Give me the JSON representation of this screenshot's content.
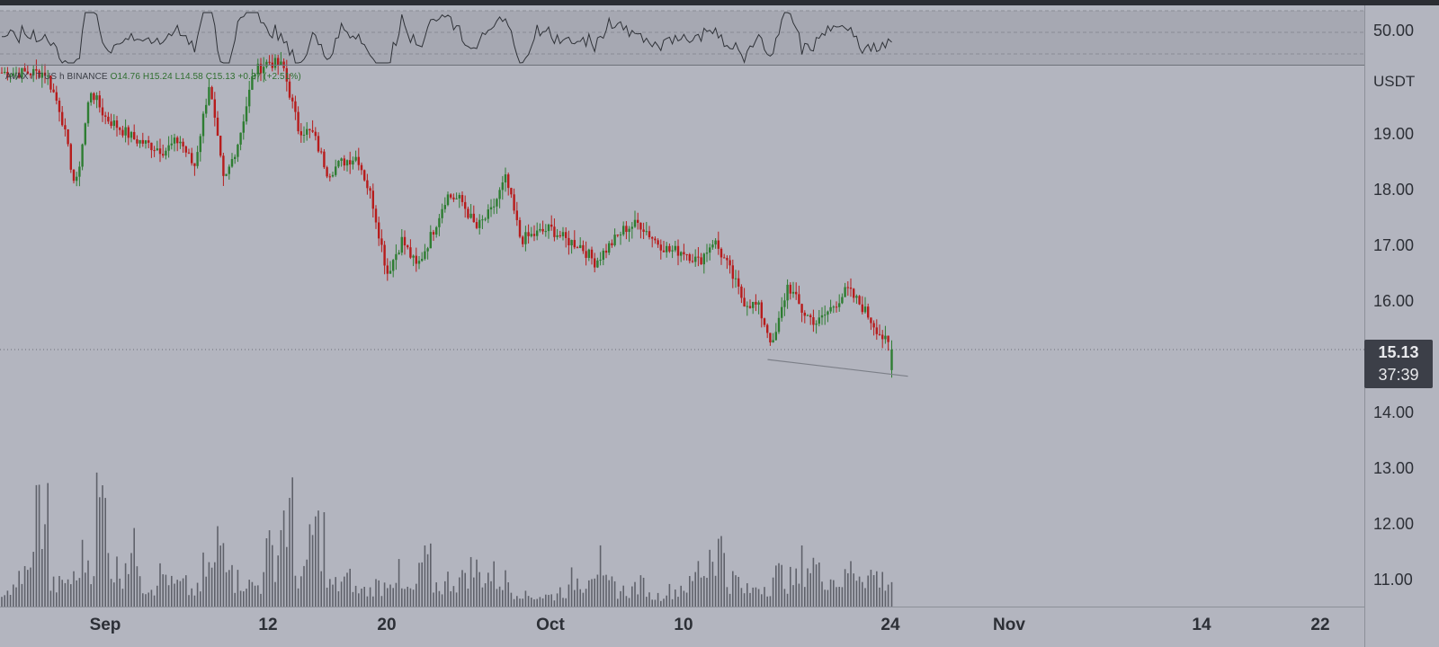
{
  "ticker": {
    "symbol": "AVAX",
    "pair_fragment": "/ T",
    "quote_fragment": "US",
    "interval_fragment": "h",
    "exchange": "BINANCE",
    "open": "O14.76",
    "high": "H15.24",
    "low": "L14.58",
    "close": "C15.13",
    "change": "+0.37 (+2.51%)"
  },
  "price_axis": {
    "currency": "USDT",
    "rsi_level": "50.00",
    "ticks": [
      "19.00",
      "18.00",
      "17.00",
      "16.00",
      "14.00",
      "13.00",
      "12.00",
      "11.00"
    ]
  },
  "last_price_tag": {
    "price": "15.13",
    "countdown": "37:39"
  },
  "time_axis": {
    "labels": [
      "Sep",
      "12",
      "20",
      "Oct",
      "10",
      "24",
      "Nov",
      "14",
      "22"
    ]
  },
  "colors": {
    "background": "#b3b5bf",
    "up_candle": "#2e7d32",
    "down_candle": "#b71c1c",
    "volume": "#5f616a",
    "rsi_line": "#2f3238",
    "trendline": "#7c7f88"
  },
  "chart_data": {
    "type": "candlestick",
    "title": "",
    "symbol": "AVAX/USDT",
    "exchange": "BINANCE",
    "ylabel": "USDT",
    "ylim": [
      10.6,
      20.0
    ],
    "y_ticks": [
      11,
      12,
      13,
      14,
      16,
      17,
      18,
      19
    ],
    "x_tick_labels": [
      "Sep",
      "12",
      "20",
      "Oct",
      "10",
      "24",
      "Nov",
      "14",
      "22"
    ],
    "last": {
      "open": 14.76,
      "high": 15.24,
      "low": 14.58,
      "close": 15.13,
      "change": 0.37,
      "change_pct": 2.51
    },
    "price_path": [
      [
        "Aug 28",
        20.1
      ],
      [
        "Aug 29",
        19.4
      ],
      [
        "Aug 30",
        18.0
      ],
      [
        "Aug 31",
        19.8
      ],
      [
        "Sep 1",
        19.3
      ],
      [
        "Sep 2",
        19.1
      ],
      [
        "Sep 3",
        18.9
      ],
      [
        "Sep 4",
        18.8
      ],
      [
        "Sep 5",
        18.7
      ],
      [
        "Sep 6",
        18.9
      ],
      [
        "Sep 7",
        18.4
      ],
      [
        "Sep 8",
        19.9
      ],
      [
        "Sep 9",
        18.1
      ],
      [
        "Sep 10",
        18.9
      ],
      [
        "Sep 11",
        20.1
      ],
      [
        "Sep 12",
        20.3
      ],
      [
        "Sep 13",
        20.2
      ],
      [
        "Sep 14",
        19.1
      ],
      [
        "Sep 15",
        19.0
      ],
      [
        "Sep 16",
        18.3
      ],
      [
        "Sep 17",
        18.5
      ],
      [
        "Sep 18",
        18.6
      ],
      [
        "Sep 19",
        17.8
      ],
      [
        "Sep 20",
        16.5
      ],
      [
        "Sep 21",
        17.1
      ],
      [
        "Sep 22",
        16.6
      ],
      [
        "Sep 23",
        17.2
      ],
      [
        "Sep 24",
        17.9
      ],
      [
        "Sep 25",
        17.8
      ],
      [
        "Sep 26",
        17.3
      ],
      [
        "Sep 27",
        17.6
      ],
      [
        "Sep 28",
        18.2
      ],
      [
        "Sep 29",
        17.1
      ],
      [
        "Sep 30",
        17.2
      ],
      [
        "Oct 1",
        17.3
      ],
      [
        "Oct 2",
        17.1
      ],
      [
        "Oct 3",
        17.0
      ],
      [
        "Oct 4",
        16.7
      ],
      [
        "Oct 5",
        17.0
      ],
      [
        "Oct 6",
        17.3
      ],
      [
        "Oct 7",
        17.4
      ],
      [
        "Oct 8",
        17.1
      ],
      [
        "Oct 9",
        16.9
      ],
      [
        "Oct 10",
        16.9
      ],
      [
        "Oct 11",
        16.7
      ],
      [
        "Oct 12",
        17.1
      ],
      [
        "Oct 13",
        16.6
      ],
      [
        "Oct 14",
        16.0
      ],
      [
        "Oct 15",
        15.9
      ],
      [
        "Oct 16",
        15.2
      ],
      [
        "Oct 17",
        16.3
      ],
      [
        "Oct 18",
        15.8
      ],
      [
        "Oct 19",
        15.6
      ],
      [
        "Oct 20",
        15.9
      ],
      [
        "Oct 21",
        16.2
      ],
      [
        "Oct 22",
        15.9
      ],
      [
        "Oct 23",
        15.5
      ],
      [
        "Oct 24",
        15.1
      ]
    ],
    "trendline": [
      [
        "Oct 16",
        14.95
      ],
      [
        "Oct 24",
        14.65
      ]
    ],
    "volume": {
      "relative_heights": [
        0.15,
        0.3,
        0.9,
        0.2,
        0.25,
        0.45,
        0.95,
        0.35,
        0.5,
        0.2,
        0.3,
        0.2,
        0.15,
        0.35,
        0.6,
        0.25,
        0.2,
        0.5,
        0.85,
        0.3,
        0.7,
        0.2,
        0.25,
        0.15,
        0.2,
        0.3,
        0.15,
        0.4,
        0.2,
        0.25,
        0.35,
        0.3,
        0.25,
        0.15,
        0.1,
        0.1,
        0.15,
        0.25,
        0.4,
        0.2,
        0.15,
        0.2,
        0.1,
        0.15,
        0.2,
        0.35,
        0.55,
        0.25,
        0.15,
        0.2,
        0.3,
        0.25,
        0.4,
        0.3,
        0.25,
        0.35,
        0.3,
        0.25
      ]
    },
    "rsi": {
      "level_label": 50,
      "band": [
        30,
        70
      ]
    }
  }
}
